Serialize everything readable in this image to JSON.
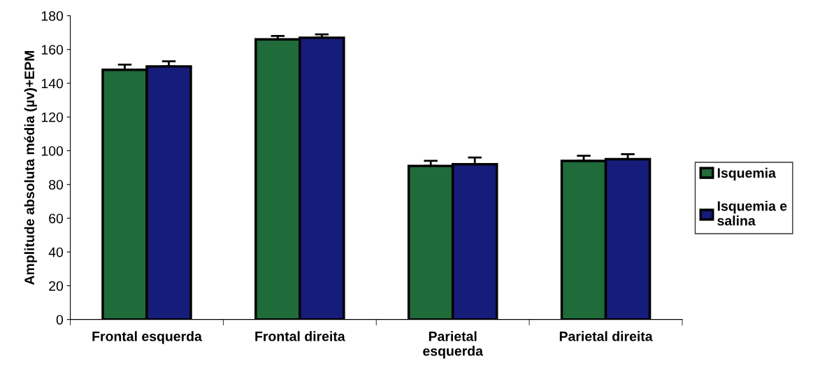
{
  "chart_data": {
    "type": "bar",
    "ylabel": "Amplitude absoluta média (µv)+EPM",
    "categories": [
      "Frontal esquerda",
      "Frontal direita",
      "Parietal\nesquerda",
      "Parietal direita"
    ],
    "series": [
      {
        "name": "Isquemia",
        "color": "#1f6b3a",
        "values": [
          148,
          166,
          91,
          94
        ],
        "errors": [
          3,
          2,
          3,
          3
        ]
      },
      {
        "name": "Isquemia e\nsalina",
        "color": "#161c7a",
        "values": [
          150,
          167,
          92,
          95
        ],
        "errors": [
          3,
          2,
          4,
          3
        ]
      }
    ],
    "ylim": [
      0,
      180
    ],
    "yticks": [
      0,
      20,
      40,
      60,
      80,
      100,
      120,
      140,
      160,
      180
    ],
    "grid": false,
    "legend": "right"
  }
}
